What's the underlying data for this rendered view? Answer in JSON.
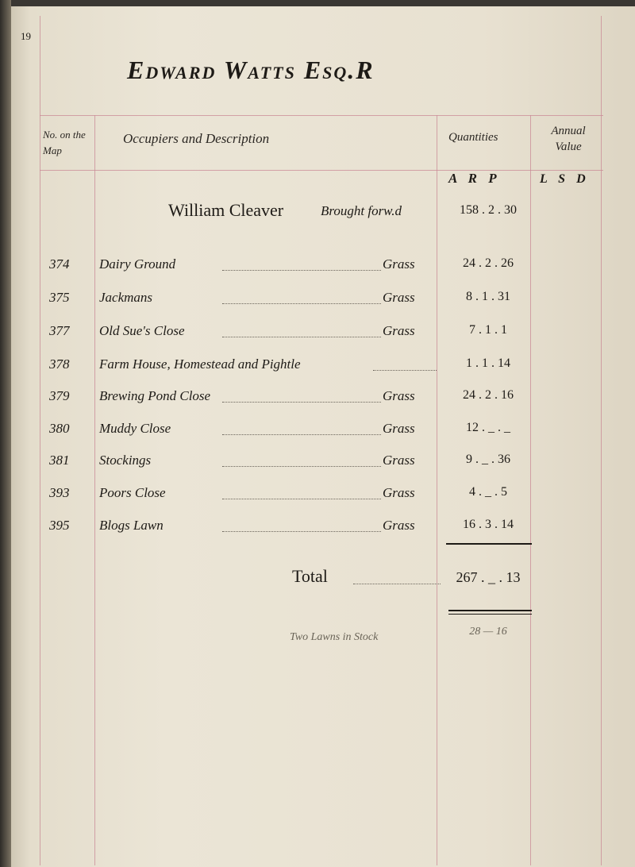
{
  "page_number": "19",
  "title": "Edward Watts Esq.R",
  "headers": {
    "map_no": "No. on the Map",
    "description": "Occupiers and Description",
    "quantities": "Quantities",
    "annual_value": "Annual Value",
    "quantity_units": "A R P",
    "value_units": "L S D"
  },
  "brought_forward": {
    "name": "William Cleaver",
    "label": "Brought forw.d",
    "quantity": "158 . 2 . 30"
  },
  "rows": [
    {
      "no": "374",
      "description": "Dairy Ground",
      "kind": "Grass",
      "quantity": "24 . 2 . 26"
    },
    {
      "no": "375",
      "description": "Jackmans",
      "kind": "Grass",
      "quantity": "8 . 1 . 31"
    },
    {
      "no": "377",
      "description": "Old Sue's Close",
      "kind": "Grass",
      "quantity": "7 . 1 . 1"
    },
    {
      "no": "378",
      "description": "Farm House, Homestead and Pightle",
      "kind": "",
      "quantity": "1 . 1 . 14"
    },
    {
      "no": "379",
      "description": "Brewing Pond Close",
      "kind": "Grass",
      "quantity": "24 . 2 . 16"
    },
    {
      "no": "380",
      "description": "Muddy Close",
      "kind": "Grass",
      "quantity": "12 . _ . _"
    },
    {
      "no": "381",
      "description": "Stockings",
      "kind": "Grass",
      "quantity": "9 . _ . 36"
    },
    {
      "no": "393",
      "description": "Poors Close",
      "kind": "Grass",
      "quantity": "4 . _ . 5"
    },
    {
      "no": "395",
      "description": "Blogs Lawn",
      "kind": "Grass",
      "quantity": "16 . 3 . 14"
    }
  ],
  "total": {
    "label": "Total",
    "quantity": "267 . _ . 13"
  },
  "pencil_note": {
    "text": "Two Lawns in Stock",
    "quantity": "28 — 16"
  }
}
